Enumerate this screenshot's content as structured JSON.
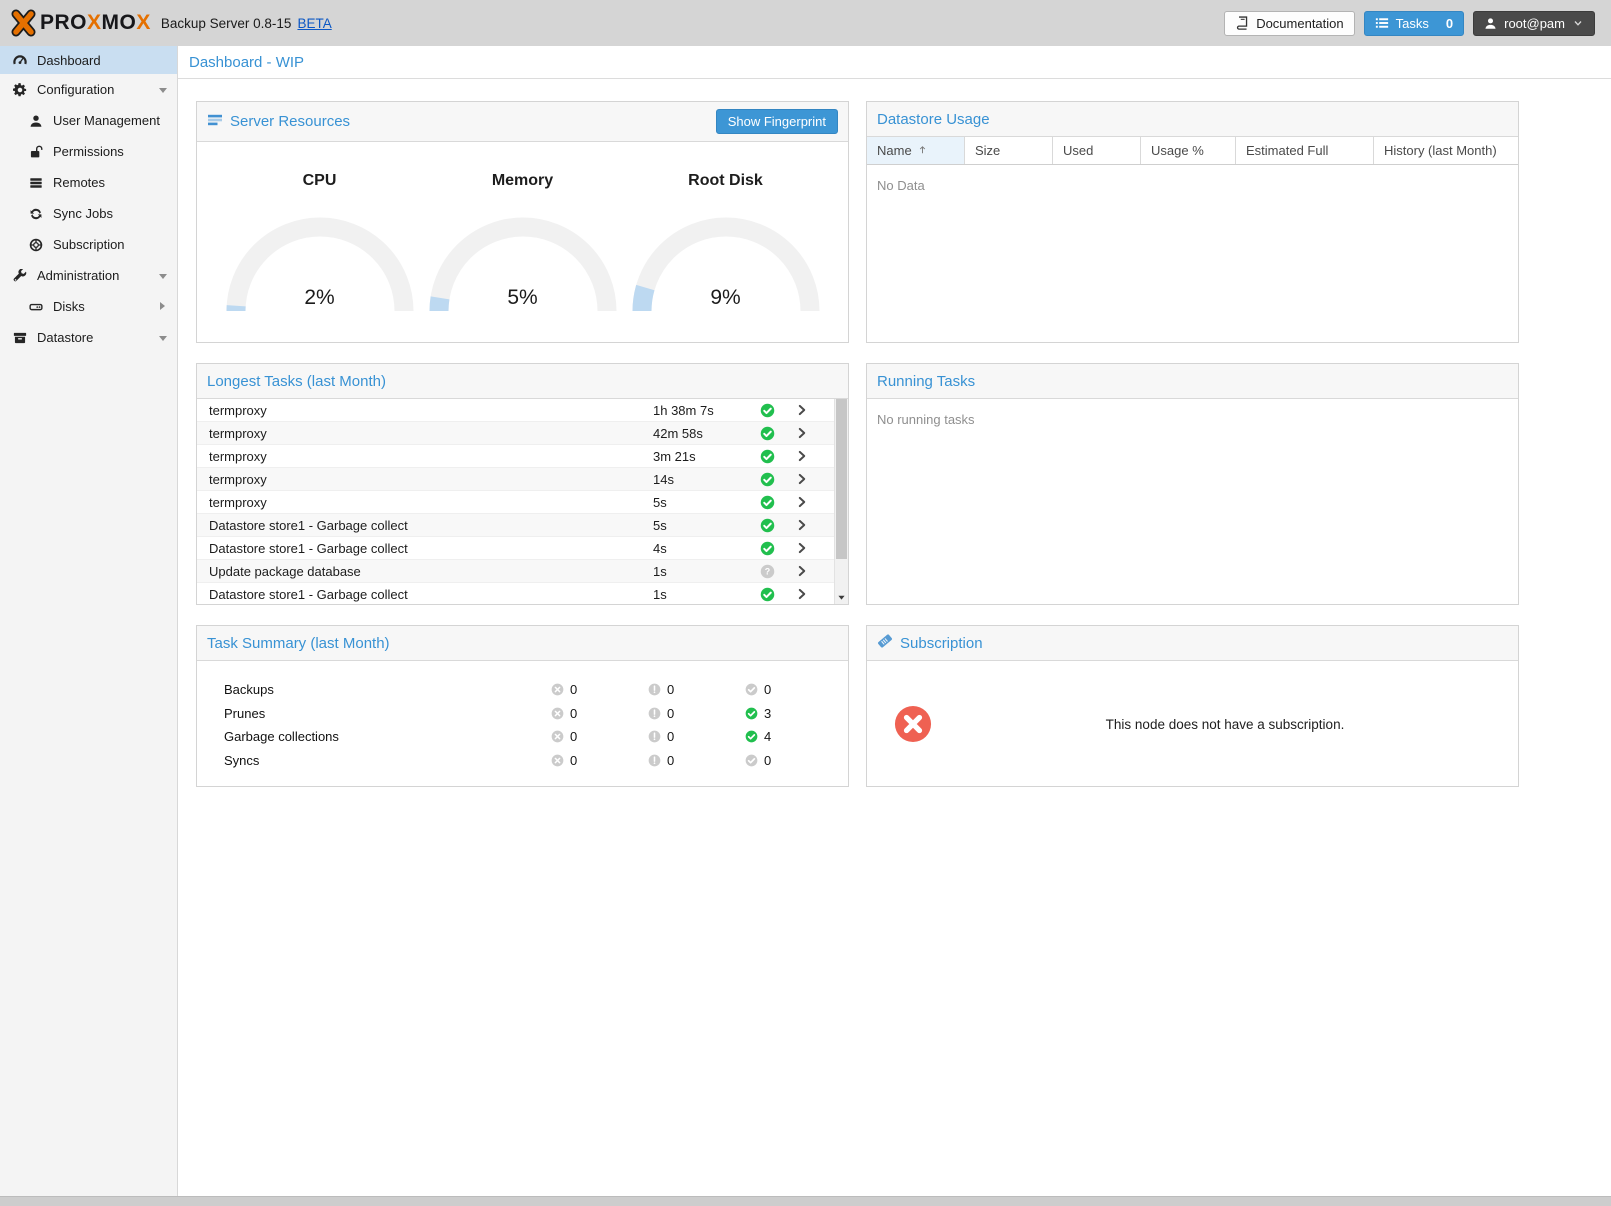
{
  "header": {
    "brand_parts": [
      {
        "text": "PRO",
        "color": "dark"
      },
      {
        "text": "X",
        "color": "orange"
      },
      {
        "text": "MO",
        "color": "dark"
      },
      {
        "text": "X",
        "color": "orange"
      }
    ],
    "product": "Backup Server 0.8-15",
    "beta_link": "BETA",
    "documentation_label": "Documentation",
    "tasks_label": "Tasks",
    "tasks_count": "0",
    "user_label": "root@pam"
  },
  "sidebar": {
    "items": [
      {
        "label": "Dashboard",
        "icon": "tachometer",
        "level": 0,
        "selected": true
      },
      {
        "label": "Configuration",
        "icon": "cog",
        "level": 0,
        "expand": "down"
      },
      {
        "label": "User Management",
        "icon": "user",
        "level": 1
      },
      {
        "label": "Permissions",
        "icon": "unlock",
        "level": 1
      },
      {
        "label": "Remotes",
        "icon": "server",
        "level": 1
      },
      {
        "label": "Sync Jobs",
        "icon": "refresh",
        "level": 1
      },
      {
        "label": "Subscription",
        "icon": "support",
        "level": 1
      },
      {
        "label": "Administration",
        "icon": "wrench",
        "level": 0,
        "expand": "down"
      },
      {
        "label": "Disks",
        "icon": "hdd",
        "level": 1,
        "expand": "right"
      },
      {
        "label": "Datastore",
        "icon": "archive",
        "level": 0,
        "expand": "down"
      }
    ]
  },
  "page_title": "Dashboard - WIP",
  "server_resources": {
    "title": "Server Resources",
    "button_label": "Show Fingerprint",
    "gauges": [
      {
        "label": "CPU",
        "percent": 2,
        "text": "2%"
      },
      {
        "label": "Memory",
        "percent": 5,
        "text": "5%"
      },
      {
        "label": "Root Disk",
        "percent": 9,
        "text": "9%"
      }
    ]
  },
  "datastore_usage": {
    "title": "Datastore Usage",
    "columns": [
      "Name",
      "Size",
      "Used",
      "Usage %",
      "Estimated Full",
      "History (last Month)"
    ],
    "sorted_column": "Name",
    "empty_text": "No Data"
  },
  "longest_tasks": {
    "title": "Longest Tasks (last Month)",
    "rows": [
      {
        "name": "termproxy",
        "duration": "1h 38m 7s",
        "status": "ok"
      },
      {
        "name": "termproxy",
        "duration": "42m 58s",
        "status": "ok"
      },
      {
        "name": "termproxy",
        "duration": "3m 21s",
        "status": "ok"
      },
      {
        "name": "termproxy",
        "duration": "14s",
        "status": "ok"
      },
      {
        "name": "termproxy",
        "duration": "5s",
        "status": "ok"
      },
      {
        "name": "Datastore store1 - Garbage collect",
        "duration": "5s",
        "status": "ok"
      },
      {
        "name": "Datastore store1 - Garbage collect",
        "duration": "4s",
        "status": "ok"
      },
      {
        "name": "Update package database",
        "duration": "1s",
        "status": "unknown"
      },
      {
        "name": "Datastore store1 - Garbage collect",
        "duration": "1s",
        "status": "ok"
      }
    ]
  },
  "running_tasks": {
    "title": "Running Tasks",
    "empty_text": "No running tasks"
  },
  "task_summary": {
    "title": "Task Summary (last Month)",
    "rows": [
      {
        "label": "Backups",
        "error": "0",
        "warning": "0",
        "ok": "0",
        "ok_active": false
      },
      {
        "label": "Prunes",
        "error": "0",
        "warning": "0",
        "ok": "3",
        "ok_active": true
      },
      {
        "label": "Garbage collections",
        "error": "0",
        "warning": "0",
        "ok": "4",
        "ok_active": true
      },
      {
        "label": "Syncs",
        "error": "0",
        "warning": "0",
        "ok": "0",
        "ok_active": false
      }
    ]
  },
  "subscription": {
    "title": "Subscription",
    "message": "This node does not have a subscription."
  },
  "colors": {
    "accent": "#3892d4",
    "success": "#21bf4e",
    "neutral_icon": "#cbcbcb",
    "subscription_error": "#ef6152",
    "gauge_fill": "#bdd9f1",
    "gauge_track": "#f1f1f1",
    "selected_nav": "#c9def1"
  }
}
